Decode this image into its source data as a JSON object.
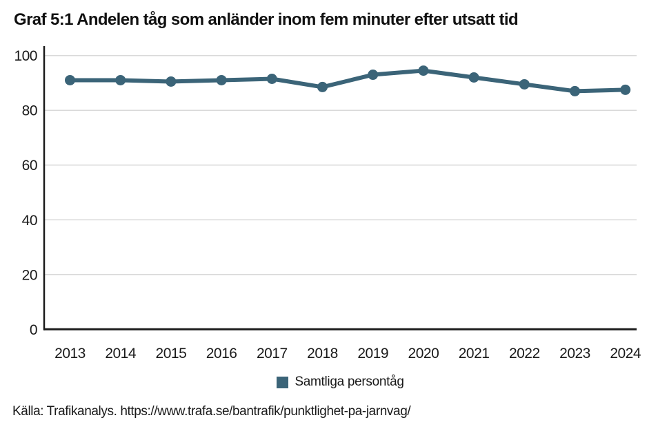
{
  "page": {
    "title": "Graf 5:1 Andelen tåg som anländer inom fem minuter efter utsatt tid",
    "source": "Källa: Trafikanalys. https://www.trafa.se/bantrafik/punktlighet-pa-jarnvag/"
  },
  "legend": {
    "label": "Samtliga persontåg",
    "color": "#3b6478"
  },
  "chart_data": {
    "type": "line",
    "title": "Graf 5:1 Andelen tåg som anländer inom fem minuter efter utsatt tid",
    "categories": [
      "2013",
      "2014",
      "2015",
      "2016",
      "2017",
      "2018",
      "2019",
      "2020",
      "2021",
      "2022",
      "2023",
      "2024"
    ],
    "series": [
      {
        "name": "Samtliga persontåg",
        "color": "#3b6478",
        "values": [
          91,
          91,
          90.5,
          91,
          91.5,
          88.5,
          93,
          94.5,
          92,
          89.5,
          87,
          87.5
        ]
      }
    ],
    "xlabel": "",
    "ylabel": "",
    "ylim": [
      0,
      100
    ],
    "yticks": [
      0,
      20,
      40,
      60,
      80,
      100
    ],
    "grid": true,
    "marker": "circle",
    "legend_position": "bottom",
    "colors": {
      "grid": "#d9d9d9",
      "axis": "#1a1a1a",
      "tick_text": "#1a1a1a",
      "background": "#ffffff"
    }
  }
}
